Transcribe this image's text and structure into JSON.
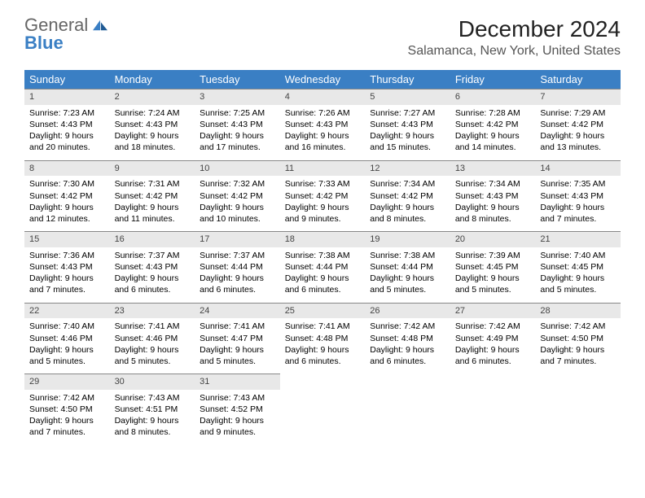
{
  "brand": {
    "line1": "General",
    "line2": "Blue"
  },
  "header": {
    "month": "December 2024",
    "location": "Salamanca, New York, United States"
  },
  "style": {
    "header_bg": "#3a7fc4",
    "daynum_bg": "#e8e8e8",
    "daynum_border": "#888888",
    "page_bg": "#ffffff",
    "text_color": "#000000"
  },
  "days_of_week": [
    "Sunday",
    "Monday",
    "Tuesday",
    "Wednesday",
    "Thursday",
    "Friday",
    "Saturday"
  ],
  "weeks": [
    [
      {
        "n": "1",
        "sr": "7:23 AM",
        "ss": "4:43 PM",
        "dl": "9 hours and 20 minutes."
      },
      {
        "n": "2",
        "sr": "7:24 AM",
        "ss": "4:43 PM",
        "dl": "9 hours and 18 minutes."
      },
      {
        "n": "3",
        "sr": "7:25 AM",
        "ss": "4:43 PM",
        "dl": "9 hours and 17 minutes."
      },
      {
        "n": "4",
        "sr": "7:26 AM",
        "ss": "4:43 PM",
        "dl": "9 hours and 16 minutes."
      },
      {
        "n": "5",
        "sr": "7:27 AM",
        "ss": "4:43 PM",
        "dl": "9 hours and 15 minutes."
      },
      {
        "n": "6",
        "sr": "7:28 AM",
        "ss": "4:42 PM",
        "dl": "9 hours and 14 minutes."
      },
      {
        "n": "7",
        "sr": "7:29 AM",
        "ss": "4:42 PM",
        "dl": "9 hours and 13 minutes."
      }
    ],
    [
      {
        "n": "8",
        "sr": "7:30 AM",
        "ss": "4:42 PM",
        "dl": "9 hours and 12 minutes."
      },
      {
        "n": "9",
        "sr": "7:31 AM",
        "ss": "4:42 PM",
        "dl": "9 hours and 11 minutes."
      },
      {
        "n": "10",
        "sr": "7:32 AM",
        "ss": "4:42 PM",
        "dl": "9 hours and 10 minutes."
      },
      {
        "n": "11",
        "sr": "7:33 AM",
        "ss": "4:42 PM",
        "dl": "9 hours and 9 minutes."
      },
      {
        "n": "12",
        "sr": "7:34 AM",
        "ss": "4:42 PM",
        "dl": "9 hours and 8 minutes."
      },
      {
        "n": "13",
        "sr": "7:34 AM",
        "ss": "4:43 PM",
        "dl": "9 hours and 8 minutes."
      },
      {
        "n": "14",
        "sr": "7:35 AM",
        "ss": "4:43 PM",
        "dl": "9 hours and 7 minutes."
      }
    ],
    [
      {
        "n": "15",
        "sr": "7:36 AM",
        "ss": "4:43 PM",
        "dl": "9 hours and 7 minutes."
      },
      {
        "n": "16",
        "sr": "7:37 AM",
        "ss": "4:43 PM",
        "dl": "9 hours and 6 minutes."
      },
      {
        "n": "17",
        "sr": "7:37 AM",
        "ss": "4:44 PM",
        "dl": "9 hours and 6 minutes."
      },
      {
        "n": "18",
        "sr": "7:38 AM",
        "ss": "4:44 PM",
        "dl": "9 hours and 6 minutes."
      },
      {
        "n": "19",
        "sr": "7:38 AM",
        "ss": "4:44 PM",
        "dl": "9 hours and 5 minutes."
      },
      {
        "n": "20",
        "sr": "7:39 AM",
        "ss": "4:45 PM",
        "dl": "9 hours and 5 minutes."
      },
      {
        "n": "21",
        "sr": "7:40 AM",
        "ss": "4:45 PM",
        "dl": "9 hours and 5 minutes."
      }
    ],
    [
      {
        "n": "22",
        "sr": "7:40 AM",
        "ss": "4:46 PM",
        "dl": "9 hours and 5 minutes."
      },
      {
        "n": "23",
        "sr": "7:41 AM",
        "ss": "4:46 PM",
        "dl": "9 hours and 5 minutes."
      },
      {
        "n": "24",
        "sr": "7:41 AM",
        "ss": "4:47 PM",
        "dl": "9 hours and 5 minutes."
      },
      {
        "n": "25",
        "sr": "7:41 AM",
        "ss": "4:48 PM",
        "dl": "9 hours and 6 minutes."
      },
      {
        "n": "26",
        "sr": "7:42 AM",
        "ss": "4:48 PM",
        "dl": "9 hours and 6 minutes."
      },
      {
        "n": "27",
        "sr": "7:42 AM",
        "ss": "4:49 PM",
        "dl": "9 hours and 6 minutes."
      },
      {
        "n": "28",
        "sr": "7:42 AM",
        "ss": "4:50 PM",
        "dl": "9 hours and 7 minutes."
      }
    ],
    [
      {
        "n": "29",
        "sr": "7:42 AM",
        "ss": "4:50 PM",
        "dl": "9 hours and 7 minutes."
      },
      {
        "n": "30",
        "sr": "7:43 AM",
        "ss": "4:51 PM",
        "dl": "9 hours and 8 minutes."
      },
      {
        "n": "31",
        "sr": "7:43 AM",
        "ss": "4:52 PM",
        "dl": "9 hours and 9 minutes."
      },
      null,
      null,
      null,
      null
    ]
  ],
  "labels": {
    "sunrise": "Sunrise: ",
    "sunset": "Sunset: ",
    "daylight": "Daylight: "
  }
}
